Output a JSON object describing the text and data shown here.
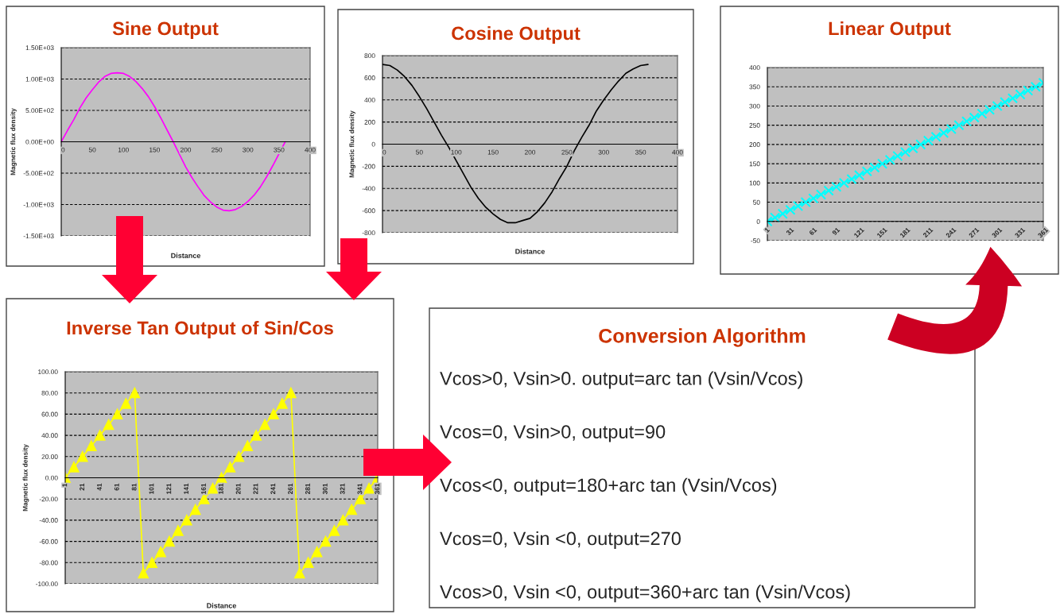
{
  "chart_data": [
    {
      "type": "line",
      "title": "Sine Output",
      "xlabel": "Distance",
      "ylabel": "Magnetic flux density",
      "x": [
        0,
        10,
        20,
        30,
        40,
        50,
        60,
        70,
        80,
        90,
        100,
        110,
        120,
        130,
        140,
        150,
        160,
        170,
        180,
        190,
        200,
        210,
        220,
        230,
        240,
        250,
        260,
        270,
        280,
        290,
        300,
        310,
        320,
        330,
        340,
        350,
        360
      ],
      "series": [
        {
          "color": "#ff00ff",
          "values": [
            0,
            180,
            350,
            540,
            700,
            830,
            950,
            1040,
            1090,
            1100,
            1090,
            1040,
            960,
            850,
            720,
            560,
            380,
            190,
            0,
            -200,
            -400,
            -570,
            -720,
            -860,
            -960,
            -1040,
            -1090,
            -1100,
            -1080,
            -1030,
            -950,
            -850,
            -720,
            -560,
            -380,
            -190,
            0
          ]
        }
      ],
      "xlim": [
        0,
        400
      ],
      "xticks": [
        0,
        50,
        100,
        150,
        200,
        250,
        300,
        350,
        400
      ],
      "ylim": [
        -1500,
        1500
      ],
      "yticks": [
        {
          "value": -1500,
          "label": "-1.50E+03"
        },
        {
          "value": -1000,
          "label": "-1.00E+03"
        },
        {
          "value": -500,
          "label": "-5.00E+02"
        },
        {
          "value": 0,
          "label": "0.00E+00"
        },
        {
          "value": 500,
          "label": "5.00E+02"
        },
        {
          "value": 1000,
          "label": "1.00E+03"
        },
        {
          "value": 1500,
          "label": "1.50E+03"
        }
      ],
      "grid": "y",
      "line_style": "solid"
    },
    {
      "type": "line",
      "title": "Cosine Output",
      "xlabel": "Distance",
      "ylabel": "Magnetic flux density",
      "x": [
        0,
        10,
        20,
        30,
        40,
        50,
        60,
        70,
        80,
        90,
        100,
        110,
        120,
        130,
        140,
        150,
        160,
        170,
        180,
        190,
        200,
        210,
        220,
        230,
        240,
        250,
        260,
        270,
        280,
        290,
        300,
        310,
        320,
        330,
        340,
        350,
        360
      ],
      "series": [
        {
          "color": "#000000",
          "values": [
            720,
            710,
            670,
            610,
            530,
            430,
            320,
            200,
            80,
            -30,
            -150,
            -270,
            -390,
            -490,
            -570,
            -630,
            -680,
            -710,
            -710,
            -690,
            -670,
            -610,
            -530,
            -430,
            -310,
            -200,
            -60,
            60,
            170,
            300,
            400,
            490,
            570,
            640,
            680,
            710,
            720
          ]
        }
      ],
      "xlim": [
        0,
        400
      ],
      "xticks": [
        0,
        50,
        100,
        150,
        200,
        250,
        300,
        350,
        400
      ],
      "ylim": [
        -800,
        800
      ],
      "yticks": [
        -800,
        -600,
        -400,
        -200,
        0,
        200,
        400,
        600,
        800
      ],
      "grid": "y",
      "line_style": "solid"
    },
    {
      "type": "line",
      "title": "Linear Output",
      "categories": [
        "1",
        null,
        null,
        "31",
        null,
        null,
        "61",
        null,
        null,
        "91",
        null,
        null,
        "121",
        null,
        null,
        "151",
        null,
        null,
        "181",
        null,
        null,
        "211",
        null,
        null,
        "241",
        null,
        null,
        "271",
        null,
        null,
        "301",
        null,
        null,
        "331",
        null,
        null,
        "361"
      ],
      "series": [
        {
          "color": "#00ffff",
          "values": [
            0,
            10,
            20,
            30,
            40,
            50,
            60,
            70,
            80,
            90,
            100,
            110,
            120,
            130,
            140,
            150,
            160,
            170,
            180,
            190,
            200,
            210,
            220,
            230,
            240,
            250,
            260,
            270,
            280,
            290,
            300,
            310,
            320,
            330,
            340,
            350,
            360
          ]
        }
      ],
      "ylim": [
        -50,
        400
      ],
      "yticks": [
        -50,
        0,
        50,
        100,
        150,
        200,
        250,
        300,
        350,
        400
      ],
      "grid": "y",
      "marker": "cross",
      "line_style": "solid"
    },
    {
      "type": "line",
      "title": "Inverse Tan Output of Sin/Cos",
      "xlabel": "Distance",
      "ylabel": "Magnetic flux density",
      "categories": [
        "1",
        null,
        "21",
        null,
        "41",
        null,
        "61",
        null,
        "81",
        null,
        "101",
        null,
        "121",
        null,
        "141",
        null,
        "161",
        null,
        "181",
        null,
        "201",
        null,
        "221",
        null,
        "241",
        null,
        "261",
        null,
        "281",
        null,
        "301",
        null,
        "321",
        null,
        "341",
        null,
        "361"
      ],
      "series": [
        {
          "color": "#ffff00",
          "values": [
            0,
            10,
            20,
            30,
            40,
            50,
            60,
            70,
            80,
            -90,
            -80,
            -70,
            -60,
            -50,
            -40,
            -30,
            -20,
            -10,
            0,
            10,
            20,
            30,
            40,
            50,
            60,
            70,
            80,
            -90,
            -80,
            -70,
            -60,
            -50,
            -40,
            -30,
            -20,
            -10,
            0
          ]
        }
      ],
      "ylim": [
        -100,
        100
      ],
      "yticks": [
        {
          "value": -100,
          "label": "-100.00"
        },
        {
          "value": -80,
          "label": "-80.00"
        },
        {
          "value": -60,
          "label": "-60.00"
        },
        {
          "value": -40,
          "label": "-40.00"
        },
        {
          "value": -20,
          "label": "-20.00"
        },
        {
          "value": 0,
          "label": "0.00"
        },
        {
          "value": 20,
          "label": "20.00"
        },
        {
          "value": 40,
          "label": "40.00"
        },
        {
          "value": 60,
          "label": "60.00"
        },
        {
          "value": 80,
          "label": "80.00"
        },
        {
          "value": 100,
          "label": "100.00"
        }
      ],
      "grid": "y",
      "marker": "triangle",
      "line_style": "solid"
    },
    {
      "type": "other",
      "title": "Conversion Algorithm",
      "annotations": [
        "Vcos>0, Vsin>0. output=arc tan (Vsin/Vcos)",
        "Vcos=0, Vsin>0, output=90",
        "Vcos<0, output=180+arc tan (Vsin/Vcos)",
        "Vcos=0, Vsin <0, output=270",
        "Vcos>0, Vsin <0, output=360+arc tan (Vsin/Vcos)"
      ]
    }
  ]
}
